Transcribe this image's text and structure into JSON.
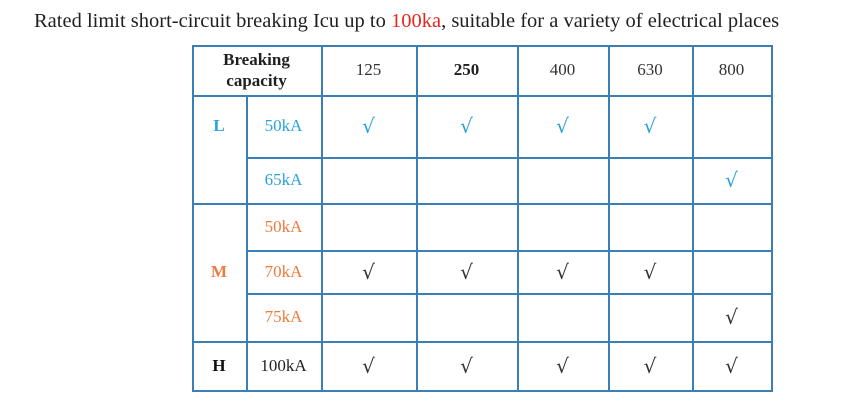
{
  "headline": {
    "prefix": "Rated limit short-circuit breaking Icu up to ",
    "highlight": "100ka",
    "suffix": ", suitable for a variety of electrical places"
  },
  "table": {
    "header_label": "Breaking capacity",
    "frame_sizes": [
      "125",
      "250",
      "400",
      "630",
      "800"
    ],
    "groups": [
      {
        "name": "L",
        "color": "#2aa3dd",
        "rows": [
          {
            "level": "50kA",
            "marks": [
              "√",
              "√",
              "√",
              "√",
              ""
            ]
          },
          {
            "level": "65kA",
            "marks": [
              "",
              "",
              "",
              "",
              "√"
            ]
          }
        ]
      },
      {
        "name": "M",
        "color": "#ef7a3c",
        "rows": [
          {
            "level": "50kA",
            "marks": [
              "",
              "",
              "",
              "",
              ""
            ]
          },
          {
            "level": "70kA",
            "marks": [
              "√",
              "√",
              "√",
              "√",
              ""
            ]
          },
          {
            "level": "75kA",
            "marks": [
              "",
              "",
              "",
              "",
              "√"
            ]
          }
        ]
      },
      {
        "name": "H",
        "color": "#111111",
        "rows": [
          {
            "level": "100kA",
            "marks": [
              "√",
              "√",
              "√",
              "√",
              "√"
            ]
          }
        ]
      }
    ],
    "border_color": "#3a7fb5"
  }
}
